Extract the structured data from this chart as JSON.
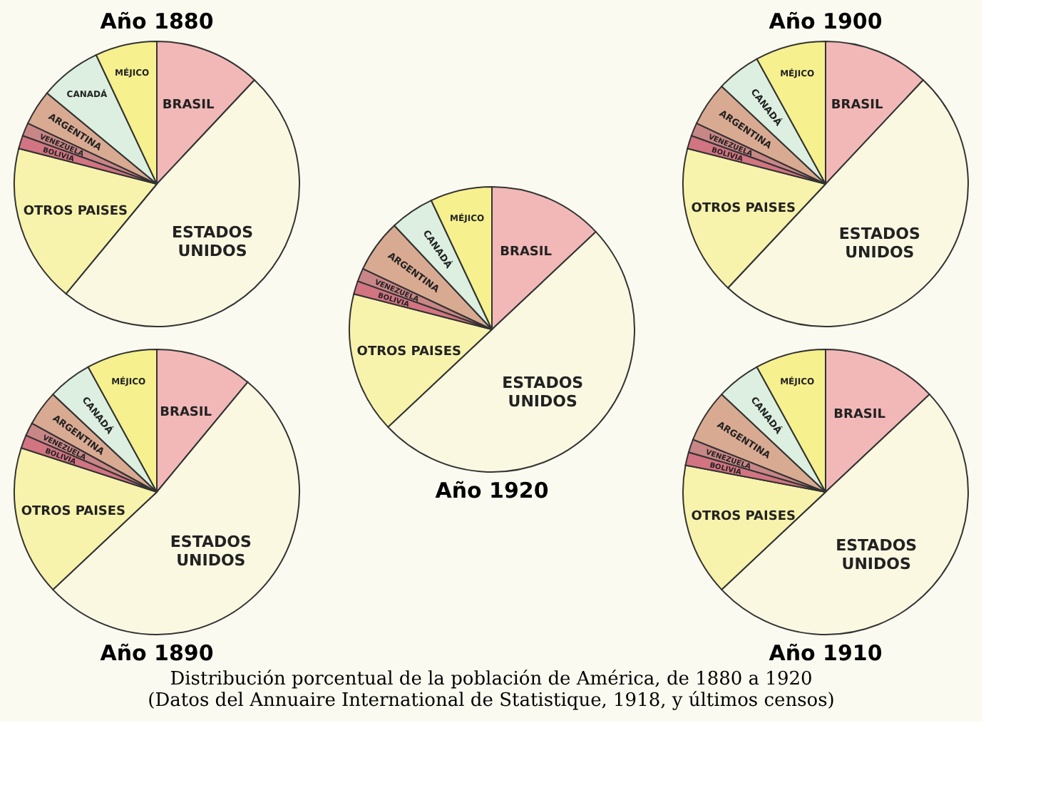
{
  "chart_data": [
    {
      "type": "pie",
      "title": "Año 1880",
      "categories": [
        "BRASIL",
        "ESTADOS\nUNIDOS",
        "OTROS PAISES",
        "BOLIVIA",
        "VENEZUELA",
        "ARGENTINA",
        "CANADÁ",
        "MÉJICO"
      ],
      "values": [
        12,
        49,
        18,
        1.5,
        1.5,
        4,
        7,
        7
      ],
      "colors": [
        "#f2b8b8",
        "#fbf8e2",
        "#f7f3ac",
        "#d27482",
        "#c98686",
        "#d9aa92",
        "#dcefe0",
        "#f6f08e"
      ],
      "annotations": [
        "Distribución porcentual de la población de América, de 1880 a 1920",
        "(Datos del Annuaire International de Statistique, 1918, y últimos censos)"
      ]
    },
    {
      "type": "pie",
      "title": "Año 1900",
      "categories": [
        "BRASIL",
        "ESTADOS\nUNIDOS",
        "OTROS PAISES",
        "BOLIVIA",
        "VENEZUELA",
        "ARGENTINA",
        "CANADÁ",
        "MÉJICO"
      ],
      "values": [
        12,
        50,
        17,
        1.5,
        1.5,
        5,
        5,
        8
      ],
      "colors": [
        "#f2b8b8",
        "#fbf8e2",
        "#f7f3ac",
        "#d27482",
        "#c98686",
        "#d9aa92",
        "#dcefe0",
        "#f6f08e"
      ]
    },
    {
      "type": "pie",
      "title": "Año 1920",
      "categories": [
        "BRASIL",
        "ESTADOS\nUNIDOS",
        "OTROS PAISES",
        "BOLIVIA",
        "VENEZUELA",
        "ARGENTINA",
        "CANADÁ",
        "MÉJICO"
      ],
      "values": [
        13,
        50,
        16,
        1.5,
        1.5,
        6,
        5,
        7
      ],
      "colors": [
        "#f2b8b8",
        "#fbf8e2",
        "#f7f3ac",
        "#d27482",
        "#c98686",
        "#d9aa92",
        "#dcefe0",
        "#f6f08e"
      ]
    },
    {
      "type": "pie",
      "title": "Año 1890",
      "categories": [
        "BRASIL",
        "ESTADOS\nUNIDOS",
        "OTROS PAISES",
        "BOLIVIA",
        "VENEZUELA",
        "ARGENTINA",
        "CANADÁ",
        "MÉJICO"
      ],
      "values": [
        11,
        52,
        17,
        1.5,
        1.5,
        4,
        5,
        8
      ],
      "colors": [
        "#f2b8b8",
        "#fbf8e2",
        "#f7f3ac",
        "#d27482",
        "#c98686",
        "#d9aa92",
        "#dcefe0",
        "#f6f08e"
      ]
    },
    {
      "type": "pie",
      "title": "Año 1910",
      "categories": [
        "BRASIL",
        "ESTADOS\nUNIDOS",
        "OTROS PAISES",
        "BOLIVIA",
        "VENEZUELA",
        "ARGENTINA",
        "CANADÁ",
        "MÉJICO"
      ],
      "values": [
        13,
        50,
        15,
        1.5,
        1.5,
        6,
        5,
        8
      ],
      "colors": [
        "#f2b8b8",
        "#fbf8e2",
        "#f7f3ac",
        "#d27482",
        "#c98686",
        "#d9aa92",
        "#dcefe0",
        "#f6f08e"
      ]
    }
  ]
}
